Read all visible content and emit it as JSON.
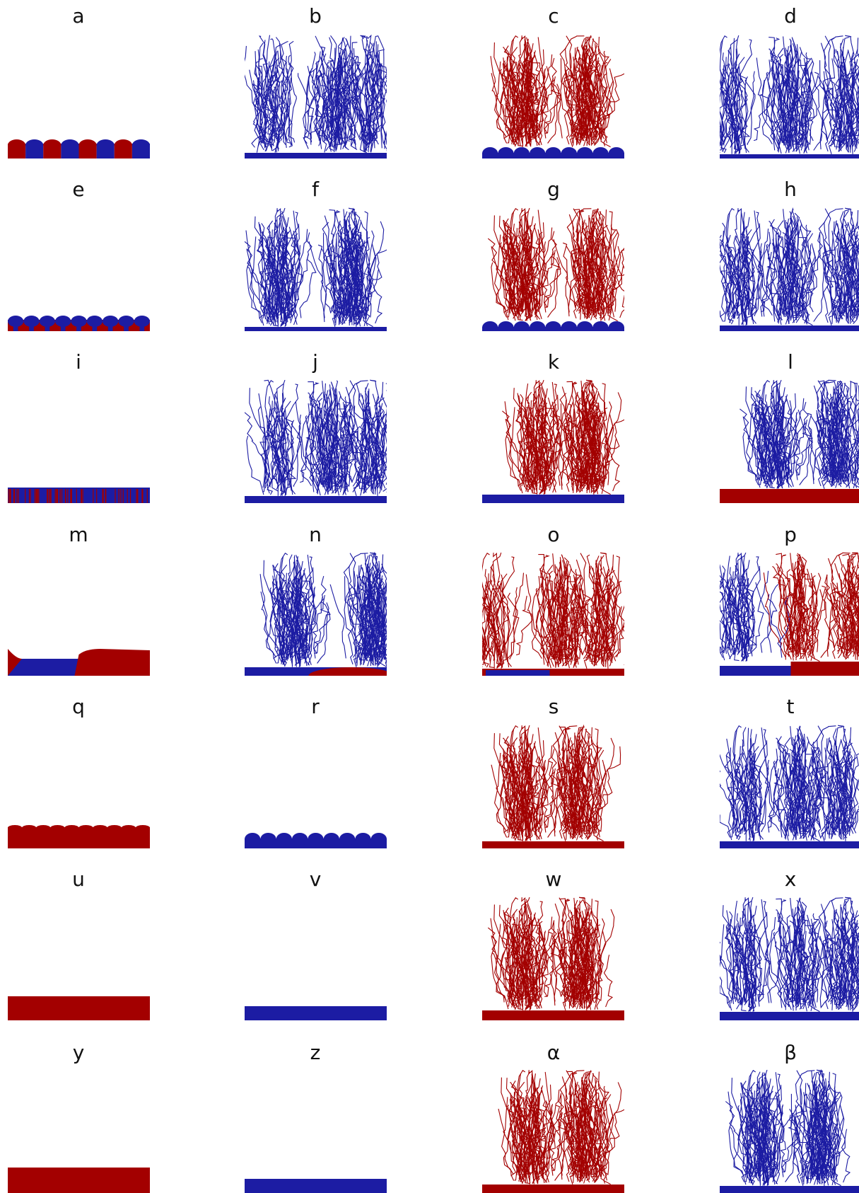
{
  "panels": [
    {
      "label": "a"
    },
    {
      "label": "b"
    },
    {
      "label": "c"
    },
    {
      "label": "d"
    },
    {
      "label": "e"
    },
    {
      "label": "f"
    },
    {
      "label": "g"
    },
    {
      "label": "h"
    },
    {
      "label": "i"
    },
    {
      "label": "j"
    },
    {
      "label": "k"
    },
    {
      "label": "l"
    },
    {
      "label": "m"
    },
    {
      "label": "n"
    },
    {
      "label": "o"
    },
    {
      "label": "p"
    },
    {
      "label": "q"
    },
    {
      "label": "r"
    },
    {
      "label": "s"
    },
    {
      "label": "t"
    },
    {
      "label": "u"
    },
    {
      "label": "v"
    },
    {
      "label": "w"
    },
    {
      "label": "x"
    },
    {
      "label": "y"
    },
    {
      "label": "z"
    },
    {
      "label": "α"
    },
    {
      "label": "β"
    }
  ]
}
